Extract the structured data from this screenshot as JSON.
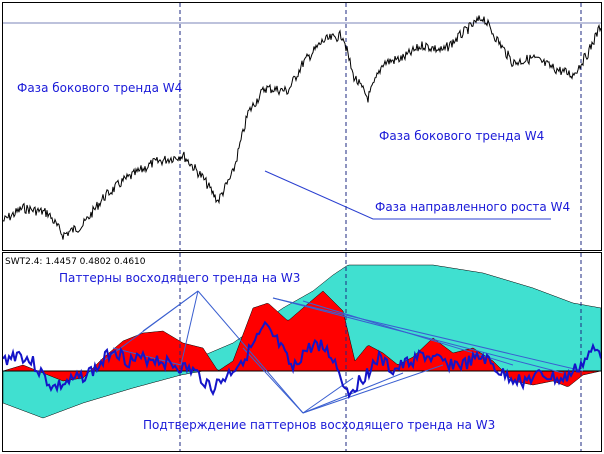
{
  "colors": {
    "price_line": "#000000",
    "annotation": "#1a1ad8",
    "hline": "#7b86b8",
    "cloud": "#40e0d0",
    "fill_red": "#ff0000",
    "signal_line": "#1414c8",
    "pattern_line": "#3a5fd0",
    "vline": "#1e2a80",
    "border": "#000000"
  },
  "top_panel": {
    "annotations": {
      "w4_left": "Фаза бокового тренда W4",
      "w4_right": "Фаза бокового тренда W4",
      "w4_growth": "Фаза направленного роста W4"
    }
  },
  "bottom_panel": {
    "indicator_label": "SWT2.4:  1.4457 0.4802 0.4610",
    "annotations": {
      "w3_patterns": "Паттерны восходящего тренда на W3",
      "w3_confirm": "Подтверждение паттернов восходящего тренда на W3"
    }
  }
}
